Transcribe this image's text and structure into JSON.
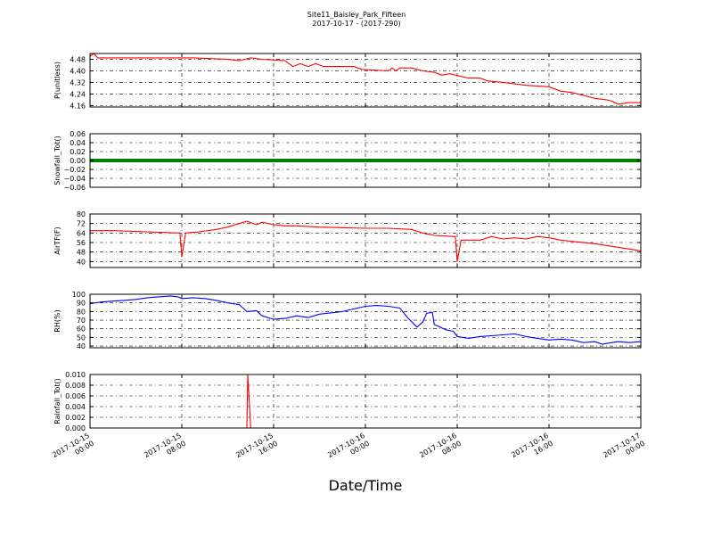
{
  "chart_data": {
    "type": "line",
    "title": "Site11_Baisley_Park_Fifteen",
    "subtitle": "2017-10-17 - (2017-290)",
    "xlabel": "Date/Time",
    "grid": true,
    "x_range": [
      "2017-10-15 00:00",
      "2017-10-17 00:00"
    ],
    "x_ticks": [
      {
        "value": "2017-10-15 00:00",
        "line1": "2017-10-15",
        "line2": "00:00"
      },
      {
        "value": "2017-10-15 08:00",
        "line1": "2017-10-15",
        "line2": "08:00"
      },
      {
        "value": "2017-10-15 16:00",
        "line1": "2017-10-15",
        "line2": "16:00"
      },
      {
        "value": "2017-10-16 00:00",
        "line1": "2017-10-16",
        "line2": "00:00"
      },
      {
        "value": "2017-10-16 08:00",
        "line1": "2017-10-16",
        "line2": "08:00"
      },
      {
        "value": "2017-10-16 16:00",
        "line1": "2017-10-16",
        "line2": "16:00"
      },
      {
        "value": "2017-10-17 00:00",
        "line1": "2017-10-17",
        "line2": "00:00"
      }
    ],
    "panels": [
      {
        "ylabel": "P(unitless)",
        "ylim": [
          4.15,
          4.52
        ],
        "yticks": [
          4.16,
          4.24,
          4.32,
          4.4,
          4.48
        ],
        "yticklabels": [
          "4.16",
          "4.24",
          "4.32",
          "4.40",
          "4.48"
        ],
        "color": "#ff0000",
        "series": [
          {
            "values": [
              [
                "2017-10-15 00:00",
                4.5
              ],
              [
                "2017-10-15 00:20",
                4.52
              ],
              [
                "2017-10-15 00:40",
                4.49
              ],
              [
                "2017-10-15 03:00",
                4.49
              ],
              [
                "2017-10-15 06:00",
                4.49
              ],
              [
                "2017-10-15 09:00",
                4.49
              ],
              [
                "2017-10-15 12:00",
                4.48
              ],
              [
                "2017-10-15 13:00",
                4.47
              ],
              [
                "2017-10-15 14:00",
                4.49
              ],
              [
                "2017-10-15 15:00",
                4.48
              ],
              [
                "2017-10-15 17:00",
                4.47
              ],
              [
                "2017-10-15 17:40",
                4.43
              ],
              [
                "2017-10-15 18:20",
                4.45
              ],
              [
                "2017-10-15 19:00",
                4.43
              ],
              [
                "2017-10-15 19:40",
                4.45
              ],
              [
                "2017-10-15 20:20",
                4.43
              ],
              [
                "2017-10-15 22:00",
                4.43
              ],
              [
                "2017-10-15 23:00",
                4.43
              ],
              [
                "2017-10-15 23:40",
                4.41
              ],
              [
                "2017-10-16 02:00",
                4.4
              ],
              [
                "2017-10-16 02:20",
                4.42
              ],
              [
                "2017-10-16 02:40",
                4.4
              ],
              [
                "2017-10-16 03:00",
                4.42
              ],
              [
                "2017-10-16 04:00",
                4.42
              ],
              [
                "2017-10-16 05:00",
                4.4
              ],
              [
                "2017-10-16 06:00",
                4.39
              ],
              [
                "2017-10-16 06:40",
                4.37
              ],
              [
                "2017-10-16 07:20",
                4.38
              ],
              [
                "2017-10-16 09:00",
                4.35
              ],
              [
                "2017-10-16 10:00",
                4.35
              ],
              [
                "2017-10-16 10:40",
                4.33
              ],
              [
                "2017-10-16 12:00",
                4.32
              ],
              [
                "2017-10-16 14:00",
                4.3
              ],
              [
                "2017-10-16 16:00",
                4.29
              ],
              [
                "2017-10-16 17:00",
                4.26
              ],
              [
                "2017-10-16 18:00",
                4.25
              ],
              [
                "2017-10-16 19:00",
                4.23
              ],
              [
                "2017-10-16 20:00",
                4.21
              ],
              [
                "2017-10-16 21:00",
                4.2
              ],
              [
                "2017-10-16 21:30",
                4.19
              ],
              [
                "2017-10-16 22:00",
                4.17
              ],
              [
                "2017-10-16 23:00",
                4.18
              ],
              [
                "2017-10-17 00:00",
                4.18
              ]
            ]
          }
        ]
      },
      {
        "ylabel": "Snowfall_Tot()",
        "ylim": [
          -0.06,
          0.06
        ],
        "yticks": [
          -0.06,
          -0.04,
          -0.02,
          0.0,
          0.02,
          0.04,
          0.06
        ],
        "yticklabels": [
          "−0.06",
          "−0.04",
          "−0.02",
          "0.00",
          "0.02",
          "0.04",
          "0.06"
        ],
        "color": "#008000",
        "thick": true,
        "series": [
          {
            "values": [
              [
                "2017-10-15 00:00",
                0
              ],
              [
                "2017-10-17 00:00",
                0
              ]
            ]
          }
        ]
      },
      {
        "ylabel": "AirTF(F)",
        "ylim": [
          35,
          80
        ],
        "yticks": [
          40,
          48,
          56,
          64,
          72,
          80
        ],
        "yticklabels": [
          "40",
          "48",
          "56",
          "64",
          "72",
          "80"
        ],
        "color": "#ff0000",
        "series": [
          {
            "values": [
              [
                "2017-10-15 00:00",
                66
              ],
              [
                "2017-10-15 02:00",
                66
              ],
              [
                "2017-10-15 05:00",
                65
              ],
              [
                "2017-10-15 07:50",
                64
              ],
              [
                "2017-10-15 08:00",
                44
              ],
              [
                "2017-10-15 08:20",
                64
              ],
              [
                "2017-10-15 09:30",
                65
              ],
              [
                "2017-10-15 11:00",
                67
              ],
              [
                "2017-10-15 12:00",
                69
              ],
              [
                "2017-10-15 13:00",
                72
              ],
              [
                "2017-10-15 13:40",
                74
              ],
              [
                "2017-10-15 14:30",
                71
              ],
              [
                "2017-10-15 15:00",
                73
              ],
              [
                "2017-10-15 16:00",
                71
              ],
              [
                "2017-10-15 17:00",
                70
              ],
              [
                "2017-10-15 18:00",
                70
              ],
              [
                "2017-10-15 20:00",
                69
              ],
              [
                "2017-10-16 00:00",
                68
              ],
              [
                "2017-10-16 02:00",
                68
              ],
              [
                "2017-10-16 04:00",
                67
              ],
              [
                "2017-10-16 05:00",
                64
              ],
              [
                "2017-10-16 06:00",
                62
              ],
              [
                "2017-10-16 07:50",
                61
              ],
              [
                "2017-10-16 08:00",
                40
              ],
              [
                "2017-10-16 08:20",
                58
              ],
              [
                "2017-10-16 09:00",
                58
              ],
              [
                "2017-10-16 10:00",
                58
              ],
              [
                "2017-10-16 11:00",
                61
              ],
              [
                "2017-10-16 12:00",
                59
              ],
              [
                "2017-10-16 13:00",
                60
              ],
              [
                "2017-10-16 14:00",
                59
              ],
              [
                "2017-10-16 15:00",
                61
              ],
              [
                "2017-10-16 16:00",
                60
              ],
              [
                "2017-10-16 17:00",
                58
              ],
              [
                "2017-10-16 18:00",
                57
              ],
              [
                "2017-10-16 20:00",
                55
              ],
              [
                "2017-10-16 22:00",
                52
              ],
              [
                "2017-10-17 00:00",
                49
              ]
            ]
          }
        ]
      },
      {
        "ylabel": "RH(%)",
        "ylim": [
          38,
          100
        ],
        "yticks": [
          40,
          50,
          60,
          70,
          80,
          90,
          100
        ],
        "yticklabels": [
          "40",
          "50",
          "60",
          "70",
          "80",
          "90",
          "100"
        ],
        "color": "#0000ff",
        "series": [
          {
            "values": [
              [
                "2017-10-15 00:00",
                89
              ],
              [
                "2017-10-15 01:00",
                91
              ],
              [
                "2017-10-15 02:00",
                92
              ],
              [
                "2017-10-15 03:00",
                93
              ],
              [
                "2017-10-15 04:00",
                94
              ],
              [
                "2017-10-15 05:00",
                96
              ],
              [
                "2017-10-15 06:00",
                97
              ],
              [
                "2017-10-15 07:00",
                98
              ],
              [
                "2017-10-15 07:40",
                97
              ],
              [
                "2017-10-15 08:00",
                95
              ],
              [
                "2017-10-15 09:00",
                96
              ],
              [
                "2017-10-15 10:00",
                95
              ],
              [
                "2017-10-15 11:00",
                93
              ],
              [
                "2017-10-15 12:00",
                90
              ],
              [
                "2017-10-15 13:00",
                88
              ],
              [
                "2017-10-15 13:40",
                80
              ],
              [
                "2017-10-15 14:30",
                81
              ],
              [
                "2017-10-15 15:00",
                75
              ],
              [
                "2017-10-15 16:00",
                71
              ],
              [
                "2017-10-15 17:00",
                72
              ],
              [
                "2017-10-15 18:00",
                75
              ],
              [
                "2017-10-15 19:00",
                73
              ],
              [
                "2017-10-15 20:00",
                77
              ],
              [
                "2017-10-15 22:00",
                80
              ],
              [
                "2017-10-16 00:00",
                86
              ],
              [
                "2017-10-16 01:00",
                87
              ],
              [
                "2017-10-16 02:00",
                86
              ],
              [
                "2017-10-16 03:00",
                84
              ],
              [
                "2017-10-16 03:40",
                73
              ],
              [
                "2017-10-16 04:30",
                62
              ],
              [
                "2017-10-16 05:00",
                68
              ],
              [
                "2017-10-16 05:20",
                78
              ],
              [
                "2017-10-16 05:50",
                79
              ],
              [
                "2017-10-16 06:00",
                65
              ],
              [
                "2017-10-16 07:00",
                59
              ],
              [
                "2017-10-16 07:40",
                57
              ],
              [
                "2017-10-16 08:00",
                51
              ],
              [
                "2017-10-16 09:00",
                49
              ],
              [
                "2017-10-16 10:00",
                51
              ],
              [
                "2017-10-16 12:00",
                53
              ],
              [
                "2017-10-16 13:00",
                54
              ],
              [
                "2017-10-16 14:00",
                51
              ],
              [
                "2017-10-16 15:00",
                49
              ],
              [
                "2017-10-16 16:00",
                47
              ],
              [
                "2017-10-16 17:00",
                48
              ],
              [
                "2017-10-16 18:00",
                47
              ],
              [
                "2017-10-16 19:00",
                44
              ],
              [
                "2017-10-16 20:00",
                45
              ],
              [
                "2017-10-16 20:40",
                42
              ],
              [
                "2017-10-16 21:00",
                43
              ],
              [
                "2017-10-16 22:00",
                45
              ],
              [
                "2017-10-16 23:00",
                44
              ],
              [
                "2017-10-17 00:00",
                45
              ]
            ]
          }
        ]
      },
      {
        "ylabel": "Rainfall_Tot()",
        "ylim": [
          0,
          0.01
        ],
        "yticks": [
          0.0,
          0.002,
          0.004,
          0.006,
          0.008,
          0.01
        ],
        "yticklabels": [
          "0.000",
          "0.002",
          "0.004",
          "0.006",
          "0.008",
          "0.010"
        ],
        "color": "#ff0000",
        "series": [
          {
            "values": [
              [
                "2017-10-15 00:00",
                0
              ],
              [
                "2017-10-15 13:40",
                0
              ],
              [
                "2017-10-15 13:45",
                0.01
              ],
              [
                "2017-10-15 14:00",
                0
              ],
              [
                "2017-10-17 00:00",
                0
              ]
            ]
          }
        ]
      }
    ]
  }
}
